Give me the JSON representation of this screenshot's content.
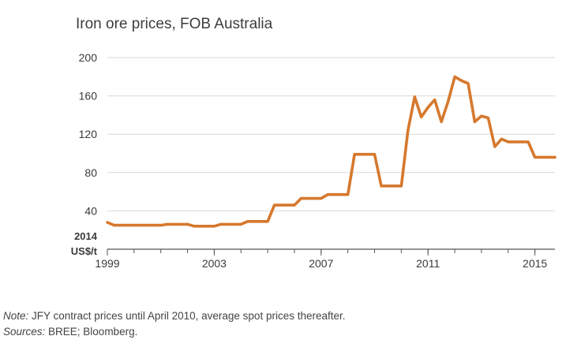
{
  "chart_data": {
    "type": "line",
    "title": "Iron ore prices, FOB Australia",
    "ylabel": [
      "2014",
      "US$/t"
    ],
    "xlabel": "",
    "xlim": [
      1999,
      2015.75
    ],
    "ylim": [
      0,
      200
    ],
    "yticks": [
      40,
      80,
      120,
      160,
      200
    ],
    "xticks": [
      1999,
      2003,
      2007,
      2011,
      2015
    ],
    "grid": "horizontal",
    "line_color": "#d6782d",
    "series": [
      {
        "name": "Iron ore price",
        "x": [
          1999,
          1999.25,
          2000,
          2001,
          2001.25,
          2002,
          2002.25,
          2003,
          2003.25,
          2004,
          2004.25,
          2005,
          2005.25,
          2006,
          2006.25,
          2007,
          2007.25,
          2008,
          2008.25,
          2009,
          2009.25,
          2010,
          2010.25,
          2010.5,
          2010.75,
          2011,
          2011.25,
          2011.5,
          2011.75,
          2012,
          2012.25,
          2012.5,
          2012.75,
          2013,
          2013.25,
          2013.5,
          2013.75,
          2014,
          2014.25,
          2014.5,
          2014.75,
          2015,
          2015.25,
          2015.5,
          2015.75
        ],
        "values": [
          28,
          25,
          25,
          25,
          26,
          26,
          24,
          24,
          26,
          26,
          29,
          29,
          46,
          46,
          53,
          53,
          57,
          57,
          99,
          99,
          66,
          66,
          124,
          159,
          138,
          148,
          156,
          133,
          154,
          180,
          176,
          173,
          133,
          139,
          137,
          107,
          115,
          112,
          112,
          112,
          112,
          96,
          96,
          96,
          96
        ]
      }
    ]
  },
  "notes": {
    "note_label": "Note:",
    "note_text": " JFY contract prices until April 2010, average spot prices thereafter.",
    "sources_label": "Sources:",
    "sources_text": " BREE; Bloomberg."
  }
}
